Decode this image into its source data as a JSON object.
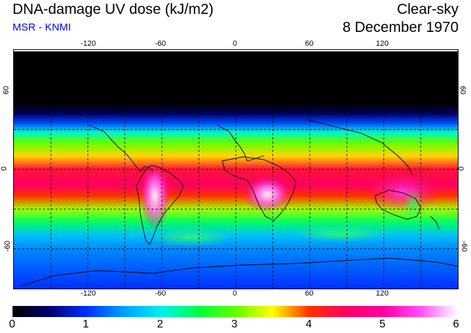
{
  "header": {
    "title": "DNA-damage UV dose (kJ/m2)",
    "subtitle": "MSR - KNMI",
    "condition": "Clear-sky",
    "date": "8 December 1970"
  },
  "map": {
    "lon_ticks_top": [
      "-120",
      "-60",
      "0",
      "60",
      "120"
    ],
    "lon_ticks_bottom": [
      "-120",
      "-60",
      "0",
      "60",
      "120"
    ],
    "lat_ticks_left": [
      "60",
      "0",
      "-60"
    ],
    "lat_ticks_right": [
      "60",
      "0",
      "-60"
    ],
    "lon_range": [
      -180,
      180
    ],
    "lat_range": [
      -90,
      90
    ],
    "gridlines_lon": [
      -150,
      -120,
      -90,
      -60,
      -30,
      0,
      30,
      60,
      90,
      120,
      150
    ],
    "gridlines_lat": [
      60,
      30,
      0,
      -30,
      -60
    ],
    "zonal_profile": [
      {
        "lat": 90,
        "value": 0
      },
      {
        "lat": 50,
        "value": 0
      },
      {
        "lat": 42,
        "value": 0.4
      },
      {
        "lat": 35,
        "value": 1.1
      },
      {
        "lat": 28,
        "value": 2.1
      },
      {
        "lat": 20,
        "value": 3.0
      },
      {
        "lat": 10,
        "value": 3.6
      },
      {
        "lat": 0,
        "value": 4.3
      },
      {
        "lat": -12,
        "value": 4.5
      },
      {
        "lat": -20,
        "value": 4.0
      },
      {
        "lat": -30,
        "value": 3.2
      },
      {
        "lat": -40,
        "value": 2.4
      },
      {
        "lat": -50,
        "value": 1.7
      },
      {
        "lat": -60,
        "value": 1.4
      },
      {
        "lat": -75,
        "value": 1.2
      },
      {
        "lat": -90,
        "value": 1.0
      }
    ]
  },
  "colorbar": {
    "labels": [
      "0",
      "1",
      "2",
      "3",
      "4",
      "5",
      "6"
    ],
    "min": 0,
    "max": 6,
    "stops": [
      {
        "value": 0,
        "color": "#000000"
      },
      {
        "value": 0.5,
        "color": "#000070"
      },
      {
        "value": 1,
        "color": "#0030ff"
      },
      {
        "value": 1.5,
        "color": "#00a0ff"
      },
      {
        "value": 2,
        "color": "#00f0f0"
      },
      {
        "value": 2.5,
        "color": "#00ff40"
      },
      {
        "value": 3,
        "color": "#60ff00"
      },
      {
        "value": 3.5,
        "color": "#ffff00"
      },
      {
        "value": 4,
        "color": "#ff3000"
      },
      {
        "value": 4.5,
        "color": "#ff0060"
      },
      {
        "value": 5,
        "color": "#ff00a0"
      },
      {
        "value": 5.5,
        "color": "#ff50ff"
      },
      {
        "value": 6,
        "color": "#ffffff"
      }
    ]
  }
}
